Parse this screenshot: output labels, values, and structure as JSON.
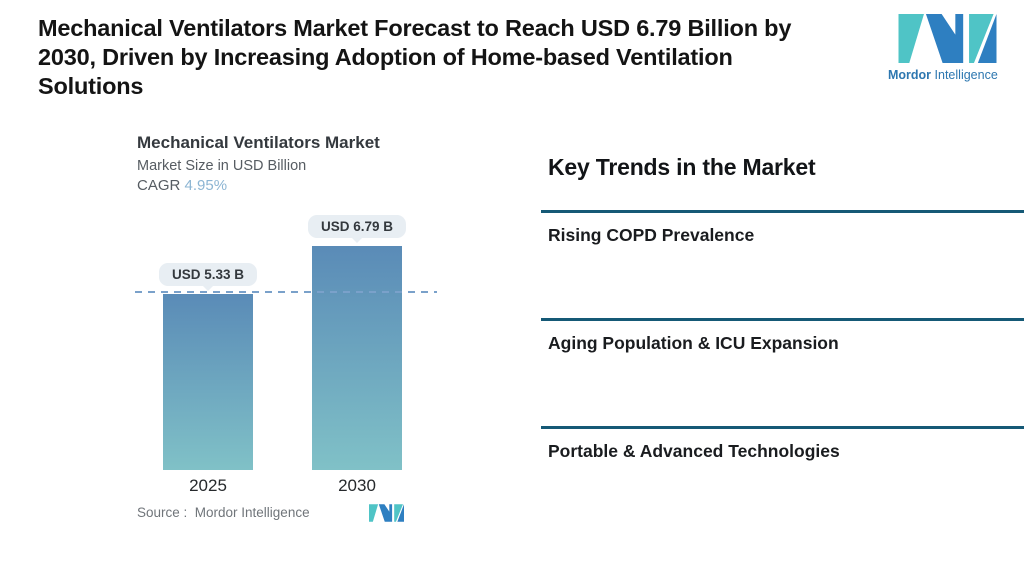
{
  "header": {
    "title_lines": {
      "l1": "Mechanical Ventilators Market Forecast to Reach USD 6.79 Billion by",
      "l2": "2030, Driven by Increasing Adoption of Home-based Ventilation",
      "l3": "Solutions"
    },
    "logo": {
      "brand_bold": "Mordor",
      "brand_regular": " Intelligence",
      "icon": "mordor-logo-icon"
    }
  },
  "chart_data": {
    "type": "bar",
    "title": "Mechanical Ventilators Market",
    "subtitle": "Market Size in USD Billion",
    "cagr_label": "CAGR",
    "cagr_value": "4.95%",
    "categories": [
      "2025",
      "2030"
    ],
    "values": [
      5.33,
      6.79
    ],
    "value_labels": [
      "USD 5.33 B",
      "USD 6.79 B"
    ],
    "unit": "USD Billion",
    "reference_line": 5.33,
    "axes_visible": false,
    "grid": false,
    "legend": false
  },
  "chart": {
    "source_label": "Source :  Mordor Intelligence",
    "mini_logo_icon": "mordor-logo-mini-icon"
  },
  "key_trends": {
    "heading": "Key Trends in the Market",
    "items": [
      {
        "label": "Rising COPD Prevalence"
      },
      {
        "label": "Aging Population & ICU Expansion"
      },
      {
        "label": "Portable & Advanced Technologies"
      }
    ]
  },
  "colors": {
    "bar-top": "#5a8bb7",
    "bar-bottom": "#80c1c7",
    "dashed-line": "#7aa1ca",
    "divider": "#155976",
    "pill-bg": "#e8eef3",
    "pill-text": "#33383d",
    "cagr-value": "#8cb5d3",
    "logo-teal": "#4fc4c6",
    "logo-blue": "#2e7fc1",
    "logo-text": "#2d77b0"
  }
}
